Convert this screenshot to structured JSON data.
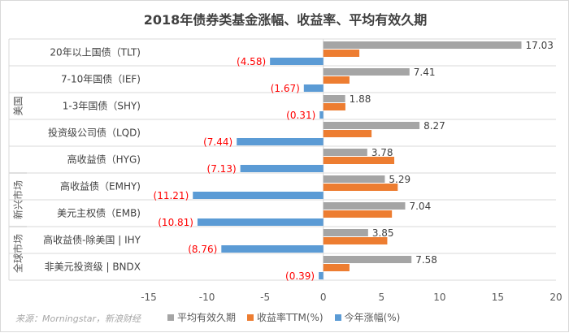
{
  "chart_data": {
    "type": "bar",
    "orientation": "horizontal",
    "title": "2018年债券类基金涨幅、收益率、平均有效久期",
    "categories": [
      "20年以上国债（TLT)",
      "7-10年国债（IEF)",
      "1-3年国债（SHY)",
      "投资级公司债（LQD)",
      "高收益债（HYG)",
      "高收益债（EMHY)",
      "美元主权债（EMB)",
      "高收益债-除美国 | IHY",
      "非美元投资级 | BNDX"
    ],
    "groups": [
      {
        "name": "美国",
        "count": 5
      },
      {
        "name": "新兴市场",
        "count": 2
      },
      {
        "name": "全球市场",
        "count": 2
      }
    ],
    "series": [
      {
        "name": "平均有效久期",
        "color": "#a5a5a5",
        "values": [
          17.03,
          7.41,
          1.88,
          8.27,
          3.78,
          5.29,
          7.04,
          3.85,
          7.58
        ],
        "labels": [
          "17.03",
          "7.41",
          "1.88",
          "8.27",
          "3.78",
          "5.29",
          "7.04",
          "3.85",
          "7.58"
        ]
      },
      {
        "name": "收益率TTM(%)",
        "color": "#ed7d31",
        "values": [
          3.1,
          2.25,
          1.9,
          4.15,
          6.1,
          6.4,
          5.9,
          5.5,
          2.25
        ]
      },
      {
        "name": "今年涨幅(%)",
        "color": "#5b9bd5",
        "values": [
          -4.58,
          -1.67,
          -0.31,
          -7.44,
          -7.13,
          -11.21,
          -10.81,
          -8.76,
          -0.39
        ],
        "labels": [
          "(4.58)",
          "(1.67)",
          "(0.31)",
          "(7.44)",
          "(7.13)",
          "(11.21)",
          "(10.81)",
          "(8.76)",
          "(0.39)"
        ],
        "label_color": "#ff0000"
      }
    ],
    "xlim": [
      -15,
      20
    ],
    "xticks": [
      "-15",
      "-10",
      "-5",
      "0",
      "5",
      "10",
      "15",
      "20"
    ],
    "grid": "horizontal category separators",
    "legend": "bottom"
  },
  "source": "来源：Morningstar，新浪财经"
}
